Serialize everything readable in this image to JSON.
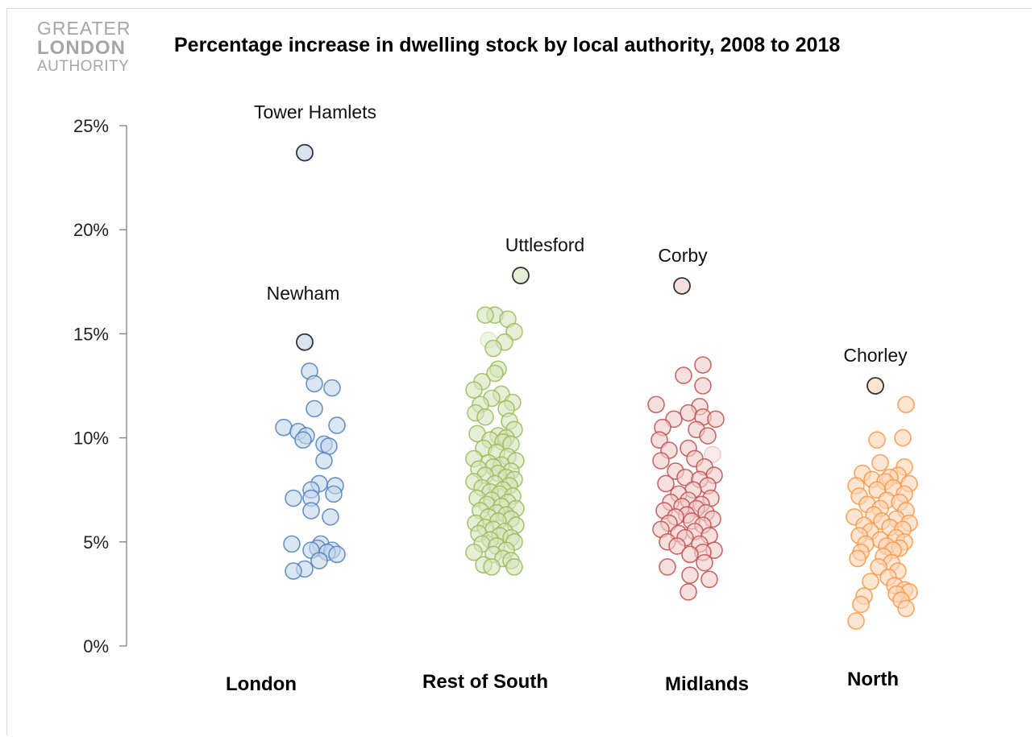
{
  "logo": {
    "line1": "GREATER",
    "line2": "LONDON",
    "line3": "AUTHORITY"
  },
  "chart_data": {
    "type": "scatter",
    "title": "Percentage increase in dwelling stock by local authority, 2008 to 2018",
    "xlabel": "",
    "ylabel": "",
    "ylim": [
      0,
      25
    ],
    "yticks": [
      "0%",
      "5%",
      "10%",
      "15%",
      "20%",
      "25%"
    ],
    "grid": false,
    "legend": "none",
    "categories": [
      "London",
      "Rest of South",
      "Midlands",
      "North"
    ],
    "series": [
      {
        "category": "London",
        "color": "#4f81bd",
        "fill": "#c5d6eb",
        "values": [
          13.2,
          12.6,
          12.4,
          11.4,
          10.6,
          10.5,
          10.3,
          10.1,
          9.9,
          9.7,
          9.6,
          8.9,
          7.8,
          7.7,
          7.5,
          7.3,
          7.1,
          7.1,
          6.5,
          6.2,
          4.9,
          4.9,
          4.7,
          4.6,
          4.6,
          4.5,
          4.4,
          4.1,
          3.7,
          3.6
        ],
        "jitter": [
          0.15,
          0.3,
          0.85,
          0.3,
          1.0,
          -0.65,
          -0.2,
          0.05,
          -0.05,
          0.6,
          0.75,
          0.6,
          0.45,
          0.95,
          0.2,
          0.9,
          0.2,
          -0.35,
          0.2,
          0.8,
          -0.4,
          0.5,
          0.4,
          0.2,
          0.85,
          0.7,
          1.0,
          0.45,
          0.0,
          -0.35
        ]
      },
      {
        "category": "Rest of South",
        "color": "#9bbb59",
        "fill": "#d7e4bd",
        "values": [
          15.9,
          15.9,
          15.7,
          15.1,
          14.7,
          14.6,
          14.3,
          13.3,
          13.1,
          12.7,
          12.3,
          12.1,
          11.9,
          11.7,
          11.6,
          11.4,
          11.2,
          11.0,
          10.8,
          10.4,
          10.2,
          10.1,
          10.0,
          9.9,
          9.8,
          9.7,
          9.5,
          9.3,
          9.1,
          9.0,
          8.9,
          8.8,
          8.7,
          8.6,
          8.5,
          8.4,
          8.3,
          8.2,
          8.1,
          8.0,
          7.9,
          7.8,
          7.7,
          7.6,
          7.5,
          7.4,
          7.3,
          7.2,
          7.1,
          7.0,
          6.9,
          6.8,
          6.7,
          6.6,
          6.5,
          6.4,
          6.3,
          6.2,
          6.1,
          6.0,
          5.9,
          5.8,
          5.7,
          5.6,
          5.5,
          5.4,
          5.3,
          5.2,
          5.1,
          5.0,
          4.9,
          4.8,
          4.6,
          4.5,
          4.4,
          4.2,
          4.1,
          3.9,
          3.8,
          3.8
        ],
        "jitter": [
          0.1,
          -0.2,
          0.5,
          0.7,
          -0.1,
          0.4,
          0.05,
          0.2,
          0.1,
          -0.3,
          -0.55,
          0.3,
          0.0,
          0.65,
          -0.35,
          0.45,
          -0.5,
          -0.2,
          0.55,
          0.7,
          -0.45,
          0.2,
          0.45,
          -0.05,
          0.35,
          0.6,
          -0.25,
          0.15,
          0.5,
          -0.55,
          0.75,
          -0.1,
          0.3,
          0.05,
          -0.4,
          0.6,
          0.2,
          -0.2,
          0.45,
          0.7,
          -0.55,
          0.1,
          0.55,
          -0.3,
          0.35,
          -0.05,
          0.25,
          0.65,
          -0.45,
          0.0,
          0.5,
          -0.15,
          0.3,
          0.75,
          -0.35,
          0.15,
          0.45,
          -0.1,
          0.6,
          0.2,
          -0.5,
          0.75,
          -0.2,
          0.05,
          0.4,
          -0.4,
          0.25,
          0.6,
          -0.05,
          0.7,
          -0.3,
          0.15,
          0.45,
          -0.55,
          0.05,
          0.35,
          0.6,
          -0.25,
          0.0,
          0.7
        ],
        "highlight": 4
      },
      {
        "category": "Midlands",
        "color": "#c0504d",
        "fill": "#f0cdcc",
        "values": [
          13.5,
          13.0,
          12.5,
          11.6,
          11.5,
          11.2,
          11.0,
          10.9,
          10.9,
          10.5,
          10.4,
          10.1,
          9.9,
          9.5,
          9.4,
          9.2,
          9.0,
          8.9,
          8.6,
          8.4,
          8.2,
          8.1,
          8.0,
          7.8,
          7.7,
          7.5,
          7.3,
          7.1,
          7.0,
          6.9,
          6.8,
          6.7,
          6.6,
          6.5,
          6.4,
          6.3,
          6.2,
          6.1,
          6.0,
          5.9,
          5.8,
          5.6,
          5.5,
          5.4,
          5.3,
          5.2,
          5.0,
          4.9,
          4.8,
          4.6,
          4.5,
          4.4,
          4.0,
          3.8,
          3.4,
          3.2,
          2.6
        ],
        "jitter": [
          0.55,
          -0.05,
          0.55,
          -0.9,
          0.45,
          0.1,
          0.55,
          -0.35,
          0.95,
          -0.7,
          0.35,
          0.7,
          -0.8,
          0.1,
          -0.5,
          0.85,
          0.3,
          -0.75,
          0.6,
          -0.3,
          0.9,
          0.0,
          0.45,
          -0.6,
          0.7,
          0.25,
          -0.2,
          0.8,
          0.1,
          -0.45,
          0.5,
          -0.1,
          0.35,
          -0.65,
          0.65,
          0.05,
          -0.3,
          0.85,
          0.2,
          -0.5,
          0.55,
          -0.75,
          0.3,
          -0.2,
          0.75,
          0.0,
          -0.55,
          0.45,
          -0.25,
          0.9,
          0.55,
          0.15,
          0.6,
          -0.55,
          0.15,
          0.75,
          0.1
        ],
        "highlight": 15
      },
      {
        "category": "North",
        "color": "#f79646",
        "fill": "#fcd5b4",
        "values": [
          11.6,
          10.0,
          9.9,
          8.8,
          8.6,
          8.3,
          8.2,
          8.1,
          8.0,
          7.9,
          7.8,
          7.7,
          7.6,
          7.5,
          7.3,
          7.2,
          7.0,
          6.9,
          6.8,
          6.6,
          6.5,
          6.3,
          6.2,
          6.1,
          6.0,
          5.9,
          5.8,
          5.7,
          5.6,
          5.5,
          5.3,
          5.2,
          5.1,
          5.0,
          4.9,
          4.8,
          4.7,
          4.6,
          4.5,
          4.3,
          4.2,
          4.0,
          3.8,
          3.6,
          3.3,
          3.1,
          2.9,
          2.7,
          2.6,
          2.5,
          2.4,
          2.2,
          2.0,
          1.8,
          1.2
        ],
        "jitter": [
          0.85,
          0.75,
          -0.05,
          0.05,
          0.8,
          -0.5,
          0.6,
          0.35,
          -0.2,
          0.2,
          0.95,
          -0.7,
          0.45,
          -0.05,
          0.8,
          -0.6,
          0.25,
          0.65,
          -0.35,
          0.05,
          0.85,
          -0.15,
          -0.75,
          0.55,
          0.1,
          0.95,
          -0.45,
          0.35,
          0.75,
          -0.25,
          -0.6,
          0.55,
          0.05,
          0.8,
          -0.4,
          0.25,
          0.65,
          0.45,
          -0.55,
          0.15,
          -0.65,
          0.4,
          0.0,
          0.6,
          0.3,
          -0.25,
          0.5,
          0.8,
          0.95,
          0.55,
          -0.45,
          0.7,
          -0.55,
          0.85,
          -0.7
        ]
      }
    ],
    "annotations": [
      {
        "label": "Tower Hamlets",
        "category": "London",
        "value": 23.7
      },
      {
        "label": "Newham",
        "category": "London",
        "value": 14.6
      },
      {
        "label": "Uttlesford",
        "category": "Rest of South",
        "value": 17.8
      },
      {
        "label": "Corby",
        "category": "Midlands",
        "value": 17.3
      },
      {
        "label": "Chorley",
        "category": "North",
        "value": 12.5
      }
    ]
  }
}
